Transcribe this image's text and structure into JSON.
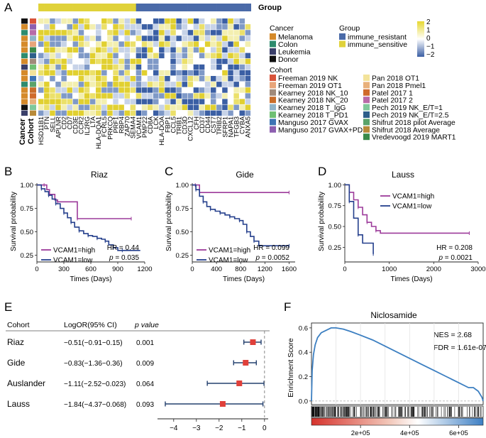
{
  "panel_labels": [
    "A",
    "B",
    "C",
    "D",
    "E",
    "F"
  ],
  "heatmap": {
    "group_title": "Group",
    "row_axis_labels": [
      "Cancer",
      "Cohort"
    ],
    "genes": [
      "HSD11B1",
      "PTN",
      "SELL",
      "APLNR",
      "CD2",
      "CD7",
      "CD3E",
      "CCR2",
      "IL2RG",
      "LTA",
      "HLA-DQA1",
      "FCRL5",
      "PRKCQ",
      "PRF1",
      "RBP4",
      "ZAP70",
      "SEMA4",
      "VCAM1",
      "PMP22",
      "CD8A",
      "LCK",
      "HLA-DOA",
      "FBP1",
      "CCL5",
      "TRIB1",
      "CD3D",
      "CXCL12",
      "CFH",
      "CD37",
      "CD44",
      "CST7",
      "TRIB2",
      "SFRP1",
      "NAPA1",
      "TFGB3",
      "CYBA",
      "ANXA5"
    ],
    "legend": {
      "cancer_title": "Cancer",
      "cancer_items": [
        {
          "label": "Melanoma",
          "color": "#d58a2a"
        },
        {
          "label": "Colon",
          "color": "#2e8b6e"
        },
        {
          "label": "Leukemia",
          "color": "#3a3f6a"
        },
        {
          "label": "Donor",
          "color": "#111111"
        }
      ],
      "group_title": "Group",
      "group_items": [
        {
          "label": "immune_resistant",
          "color": "#4a6aa8"
        },
        {
          "label": "immune_sensitive",
          "color": "#e0d23a"
        }
      ],
      "scale_ticks": [
        "2",
        "1",
        "0",
        "−1",
        "−2"
      ],
      "cohort_title": "Cohort",
      "cohort_items": [
        {
          "label": "Freeman 2019 NK",
          "color": "#d8533a"
        },
        {
          "label": "Freeman 2019 OT1",
          "color": "#e8a57a"
        },
        {
          "label": "Kearney 2018 NK_10",
          "color": "#a08a7a"
        },
        {
          "label": "Kearney 2018 NK_20",
          "color": "#c96d2a"
        },
        {
          "label": "Kearney 2018 T_IgG",
          "color": "#8fb3c8"
        },
        {
          "label": "Kearney 2018 T_PD1",
          "color": "#6fbf73"
        },
        {
          "label": "Manguso 2017 GVAX",
          "color": "#3e74b4"
        },
        {
          "label": "Manguso 2017 GVAX+PD1",
          "color": "#8d5fb0"
        },
        {
          "label": "Pan 2018 OT1",
          "color": "#f3e39a"
        },
        {
          "label": "Pan 2018 Pmel1",
          "color": "#e8b07a"
        },
        {
          "label": "Patel 2017 1",
          "color": "#cf6b2c"
        },
        {
          "label": "Patel 2017 2",
          "color": "#b86aa8"
        },
        {
          "label": "Pech 2019 NK_E/T=1",
          "color": "#7fc89a"
        },
        {
          "label": "Pech 2019 NK_E/T=2.5",
          "color": "#2d5f8a"
        },
        {
          "label": "Shifrut 2018 pilot Average",
          "color": "#5aa36a"
        },
        {
          "label": "Shifrut 2018 Average",
          "color": "#b88a3a"
        },
        {
          "label": "Vredevoogd 2019 MART1",
          "color": "#3a8a4a"
        }
      ]
    }
  },
  "km_panels": [
    {
      "title": "Riaz",
      "ylabel": "Survival probability",
      "xlabel": "Times (Days)",
      "xticks": [
        "0",
        "300",
        "600",
        "900",
        "1200"
      ],
      "yticks": [
        "0.25",
        "0.50",
        "0.75",
        "1.00"
      ],
      "legend": [
        "VCAM1=high",
        "VCAM1=low"
      ],
      "hr": "HR = 0.44",
      "p_italic": "p",
      "p_value": " = 0.035",
      "colors": {
        "high": "#9c3a9a",
        "low": "#243f8c"
      },
      "chart_data": {
        "type": "line",
        "xlim": [
          0,
          1200
        ],
        "ylim": [
          0.2,
          1.02
        ],
        "series": [
          {
            "name": "VCAM1=high",
            "x": [
              0,
              80,
              110,
              140,
              200,
              230,
              300,
              450,
              550,
              1050
            ],
            "y": [
              1,
              1,
              0.95,
              0.9,
              0.84,
              0.82,
              0.82,
              0.64,
              0.64,
              0.64
            ]
          },
          {
            "name": "VCAM1=low",
            "x": [
              0,
              50,
              90,
              130,
              170,
              210,
              260,
              300,
              340,
              380,
              420,
              470,
              520,
              570,
              620,
              670,
              720,
              760,
              800,
              850,
              900,
              950,
              1150
            ],
            "y": [
              1,
              0.96,
              0.93,
              0.89,
              0.85,
              0.8,
              0.75,
              0.7,
              0.65,
              0.6,
              0.55,
              0.51,
              0.48,
              0.46,
              0.45,
              0.43,
              0.42,
              0.4,
              0.36,
              0.33,
              0.3,
              0.3,
              0.3
            ]
          }
        ]
      }
    },
    {
      "title": "Gide",
      "ylabel": "Survival probability",
      "xlabel": "Times (Days)",
      "xticks": [
        "0",
        "400",
        "800",
        "1200",
        "1600"
      ],
      "yticks": [
        "0.25",
        "0.50",
        "0.75",
        "1.00"
      ],
      "legend": [
        "VCAM1=high",
        "VCAM1=low"
      ],
      "hr": "HR = 0.099",
      "p_italic": "p",
      "p_value": " = 0.0052",
      "colors": {
        "high": "#9c3a9a",
        "low": "#243f8c"
      },
      "chart_data": {
        "type": "line",
        "xlim": [
          0,
          1700
        ],
        "ylim": [
          0.2,
          1.02
        ],
        "series": [
          {
            "name": "VCAM1=high",
            "x": [
              0,
              50,
              120,
              1600
            ],
            "y": [
              1,
              1,
              0.92,
              0.92
            ]
          },
          {
            "name": "VCAM1=low",
            "x": [
              0,
              60,
              120,
              180,
              240,
              300,
              380,
              460,
              540,
              620,
              700,
              780,
              840,
              900,
              960,
              1020,
              1100,
              1600
            ],
            "y": [
              1,
              0.95,
              0.88,
              0.82,
              0.77,
              0.74,
              0.72,
              0.7,
              0.68,
              0.66,
              0.64,
              0.62,
              0.58,
              0.5,
              0.45,
              0.4,
              0.35,
              0.35
            ]
          }
        ]
      }
    },
    {
      "title": "Lauss",
      "ylabel": "Survival probability",
      "xlabel": "Times (Days)",
      "xticks": [
        "0",
        "1000",
        "2000",
        "3000"
      ],
      "yticks": [
        "0.25",
        "0.50",
        "0.75",
        "1.00"
      ],
      "legend": [
        "VCAM1=high",
        "VCAM1=low"
      ],
      "hr": "HR = 0.208",
      "p_italic": "p",
      "p_value": " = 0.0021",
      "colors": {
        "high": "#9c3a9a",
        "low": "#243f8c"
      },
      "chart_data": {
        "type": "line",
        "xlim": [
          0,
          3000
        ],
        "ylim": [
          0.1,
          1.02
        ],
        "series": [
          {
            "name": "VCAM1=high",
            "x": [
              0,
              100,
              200,
              300,
              400,
              500,
              600,
              700,
              800,
              2800
            ],
            "y": [
              1,
              0.91,
              0.82,
              0.73,
              0.64,
              0.55,
              0.5,
              0.45,
              0.42,
              0.42
            ]
          },
          {
            "name": "VCAM1=low",
            "x": [
              0,
              100,
              200,
              300,
              400,
              640
            ],
            "y": [
              1,
              0.8,
              0.6,
              0.4,
              0.3,
              0.17
            ]
          }
        ]
      }
    }
  ],
  "forest": {
    "headers": {
      "cohort": "Cohort",
      "logor": "LogOR(95% CI)",
      "pvalue": "p value"
    },
    "rows": [
      {
        "cohort": "Riaz",
        "ci": "−0.51(−0.91−0.15)",
        "p": "0.001",
        "est": -0.51,
        "lo": -0.91,
        "hi": -0.15
      },
      {
        "cohort": "Gide",
        "ci": "−0.83(−1.36−0.36)",
        "p": "0.009",
        "est": -0.83,
        "lo": -1.36,
        "hi": -0.36
      },
      {
        "cohort": "Auslander",
        "ci": "−1.11(−2.52−0.023)",
        "p": "0.064",
        "est": -1.11,
        "lo": -2.52,
        "hi": -0.023
      },
      {
        "cohort": "Lauss",
        "ci": "−1.84(−4.37−0.068)",
        "p": "0.093",
        "est": -1.84,
        "lo": -4.37,
        "hi": -0.068
      }
    ],
    "xticks": [
      "−4",
      "−3",
      "−2",
      "−1",
      "0"
    ],
    "chart_data": {
      "type": "scatter",
      "xlim": [
        -4.4,
        0.1
      ]
    }
  },
  "gsea": {
    "title": "Niclosamide",
    "ylabel": "Enrichment Score",
    "nes": "NES = 2.68",
    "fdr": "FDR = 1.61e-07",
    "yticks": [
      "0.0",
      "0.2",
      "0.4",
      "0.6"
    ],
    "xticks": [
      "2e+05",
      "4e+05",
      "6e+05"
    ],
    "chart_data": {
      "type": "line",
      "xlim": [
        0,
        700000
      ],
      "ylim": [
        -0.03,
        0.64
      ],
      "x": [
        0,
        3000,
        8000,
        15000,
        25000,
        40000,
        60000,
        80000,
        100000,
        130000,
        160000,
        200000,
        250000,
        300000,
        350000,
        400000,
        450000,
        500000,
        550000,
        600000,
        640000,
        660000,
        680000,
        695000,
        700000
      ],
      "y": [
        0,
        0.25,
        0.38,
        0.46,
        0.52,
        0.56,
        0.58,
        0.6,
        0.6,
        0.59,
        0.57,
        0.54,
        0.5,
        0.45,
        0.4,
        0.35,
        0.3,
        0.25,
        0.2,
        0.15,
        0.11,
        0.11,
        0.08,
        0.03,
        0.0
      ]
    }
  }
}
